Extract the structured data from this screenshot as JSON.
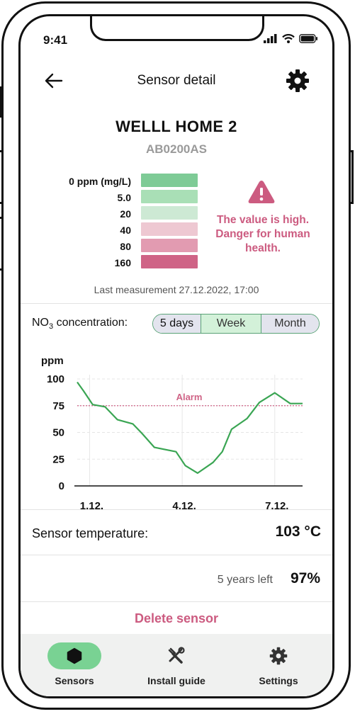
{
  "status": {
    "time": "9:41"
  },
  "header": {
    "title": "Sensor detail"
  },
  "sensor": {
    "name": "WELLL HOME 2",
    "id": "AB0200AS"
  },
  "scale": {
    "labels": [
      "0 ppm (mg/L)",
      "5.0",
      "20",
      "40",
      "80",
      "160"
    ],
    "colors": [
      "#7ecb96",
      "#a9dfb6",
      "#cde9d4",
      "#eec8d2",
      "#e29bb1",
      "#cf6386"
    ]
  },
  "warning": {
    "text": "The value is high. Danger for human health."
  },
  "last_measurement": "Last measurement 27.12.2022, 17:00",
  "concentration": {
    "label_prefix": "NO",
    "label_sub": "3",
    "label_suffix": " concentration:",
    "periods": [
      "5 days",
      "Week",
      "Month"
    ],
    "selected_period": "Week"
  },
  "chart_data": {
    "type": "line",
    "ylabel": "ppm",
    "yticks": [
      0,
      25,
      50,
      75,
      100
    ],
    "ylim": [
      0,
      100
    ],
    "xlim": [
      0,
      7.3
    ],
    "xticks": [
      {
        "pos": 0.4,
        "label": "1.12."
      },
      {
        "pos": 3.4,
        "label": "4.12."
      },
      {
        "pos": 6.4,
        "label": "7.12."
      }
    ],
    "alarm": {
      "value": 75,
      "label": "Alarm"
    },
    "series": [
      {
        "x": [
          0,
          0.2,
          0.5,
          0.9,
          1.3,
          1.8,
          2.1,
          2.5,
          3.2,
          3.5,
          3.9,
          4.4,
          4.7,
          5.0,
          5.5,
          5.9,
          6.4,
          6.9,
          7.3
        ],
        "y": [
          97,
          89,
          76,
          74,
          62,
          58,
          49,
          36,
          32,
          19,
          12,
          22,
          32,
          53,
          63,
          78,
          87,
          77,
          77
        ]
      }
    ],
    "colors": {
      "line": "#3aa553",
      "alarm": "#cf6386",
      "grid": "#e6e6e6"
    }
  },
  "temperature": {
    "label": "Sensor temperature:",
    "value": "103 °C"
  },
  "battery": {
    "left_text": "5 years left",
    "percent": "97%"
  },
  "delete_label": "Delete sensor",
  "tabs": [
    {
      "label": "Sensors",
      "icon": "hexagon-icon",
      "active": true
    },
    {
      "label": "Install guide",
      "icon": "tools-icon",
      "active": false
    },
    {
      "label": "Settings",
      "icon": "gear-icon",
      "active": false
    }
  ]
}
